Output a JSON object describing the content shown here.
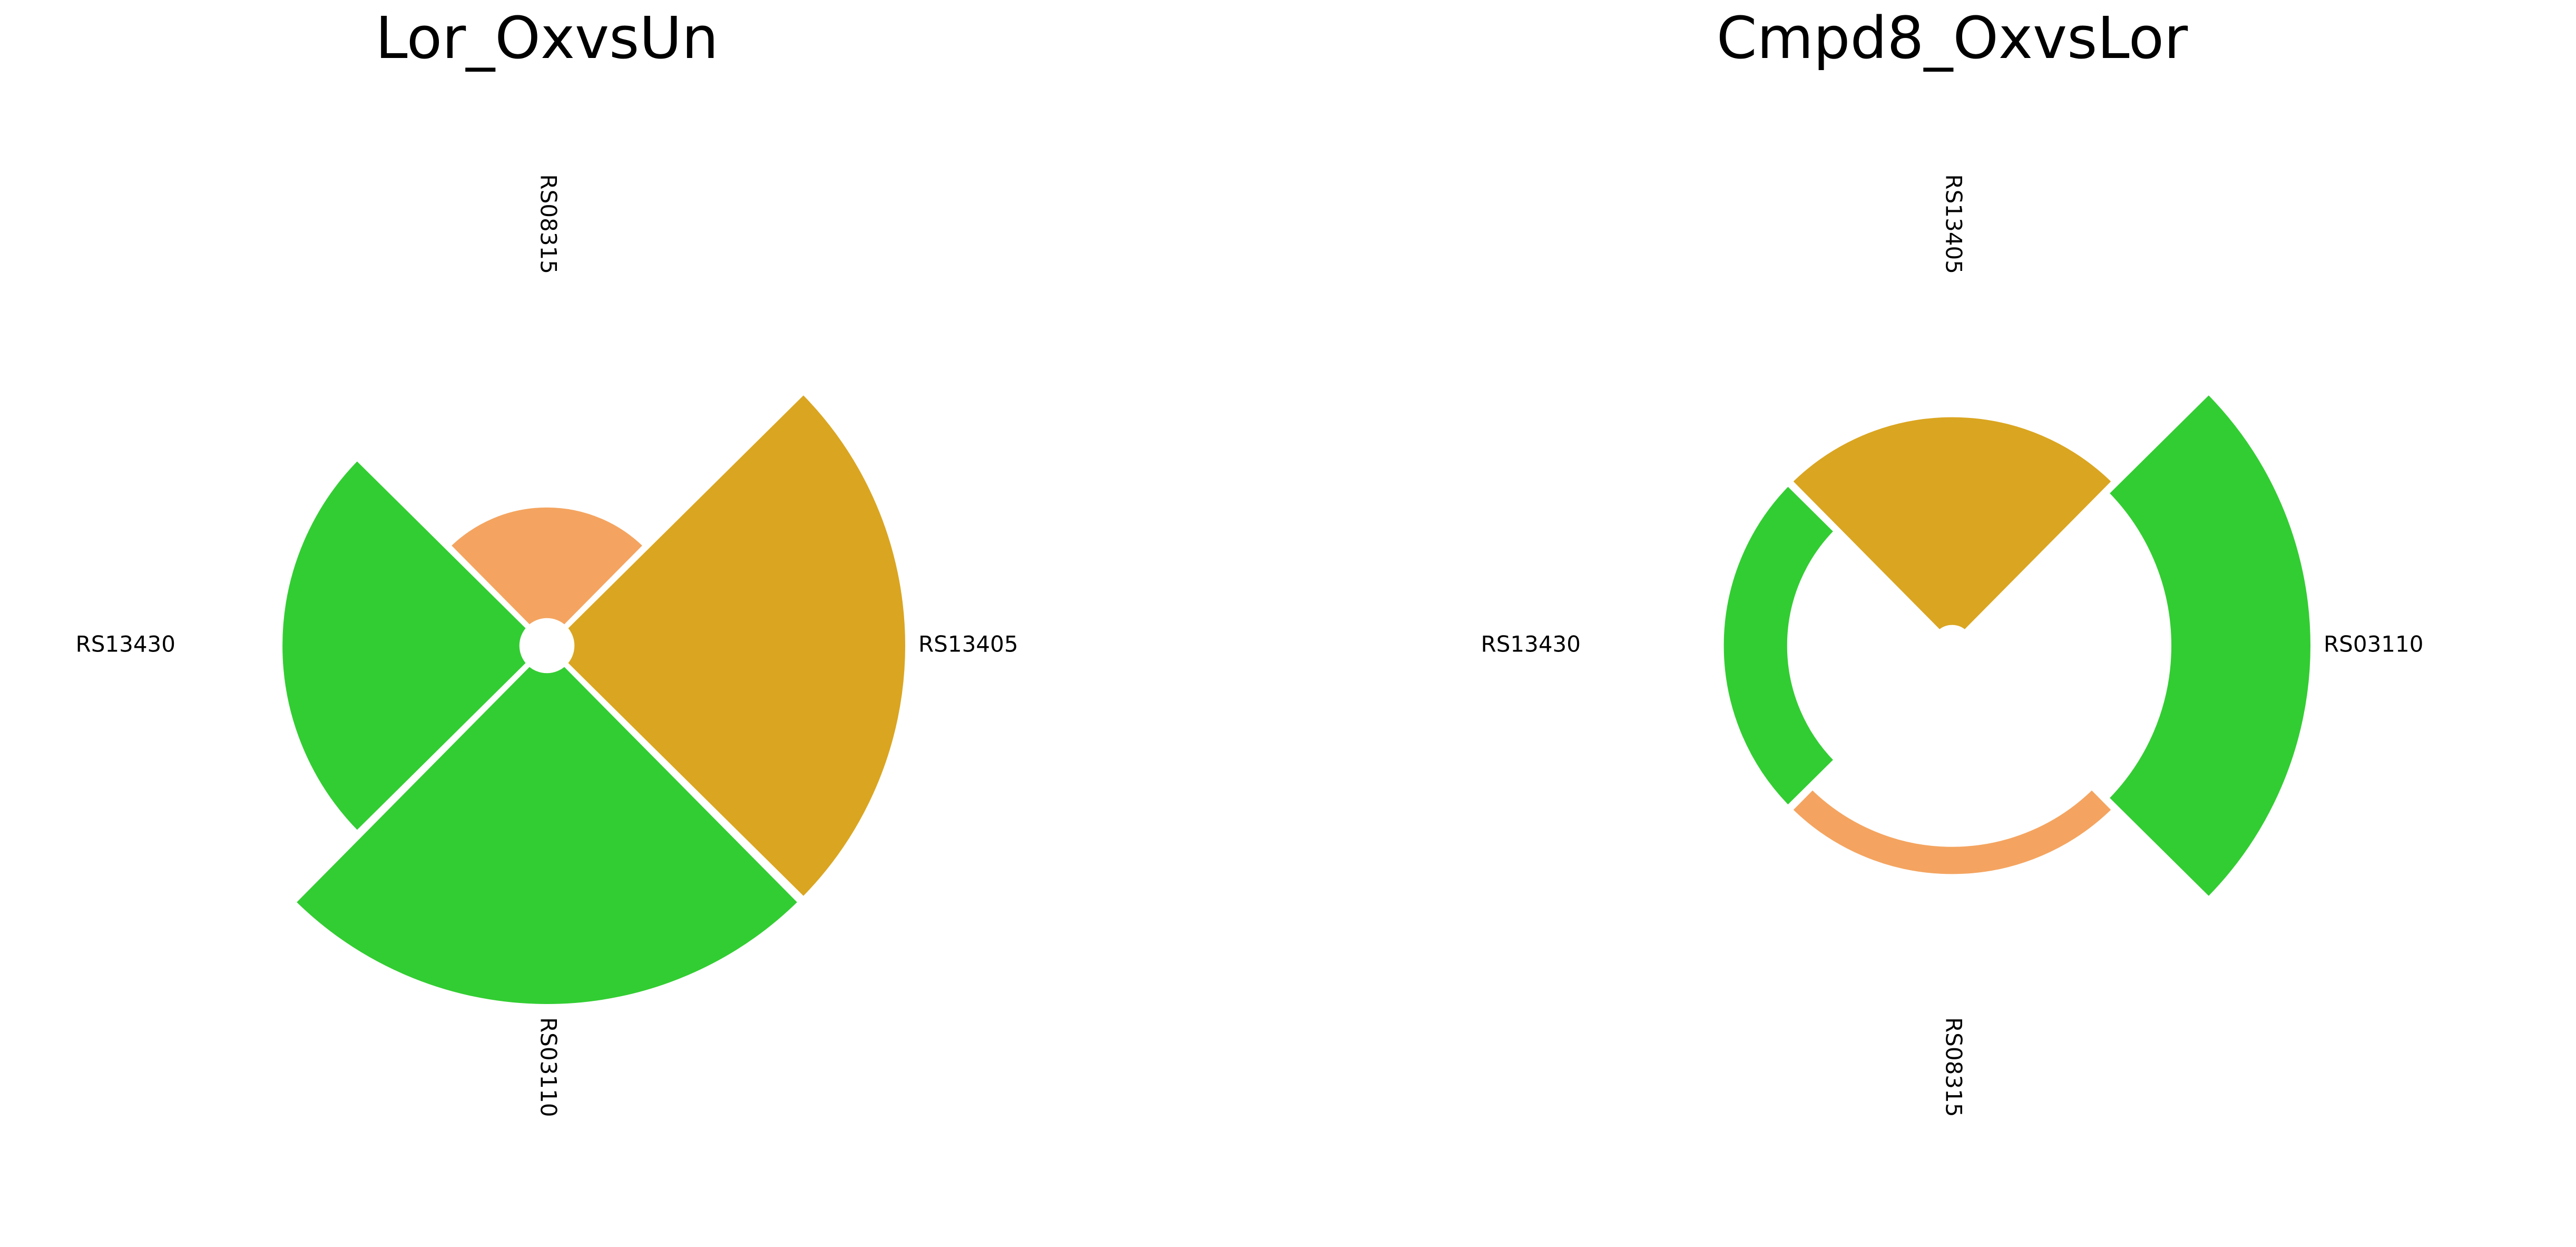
{
  "chart_data": [
    {
      "type": "radial-bar",
      "title": "Lor_OxvsUn",
      "inner_hole": 0.05,
      "max_radius": 1.0,
      "segments": [
        {
          "label": "RS08315",
          "value": 0.39,
          "color": "#F4A460"
        },
        {
          "label": "RS13405",
          "value": 1.0,
          "color": "#DAA520"
        },
        {
          "label": "RS03110",
          "value": 1.0,
          "color": "#32CD32"
        },
        {
          "label": "RS13430",
          "value": 0.74,
          "color": "#32CD32"
        }
      ]
    },
    {
      "type": "radial-bar",
      "title": "Cmpd8_OxvsLor",
      "inner_hole": 0.0,
      "max_radius": 1.0,
      "segments": [
        {
          "label": "RS13405",
          "value": 0.64,
          "color": "#DAA520",
          "base": 0.05
        },
        {
          "label": "RS03110",
          "value": 1.0,
          "color": "#32CD32",
          "base": 0.6
        },
        {
          "label": "RS08315",
          "value": 0.64,
          "color": "#F4A460",
          "base": 0.55
        },
        {
          "label": "RS13430",
          "value": 0.64,
          "color": "#32CD32",
          "base": 0.45
        }
      ]
    }
  ]
}
